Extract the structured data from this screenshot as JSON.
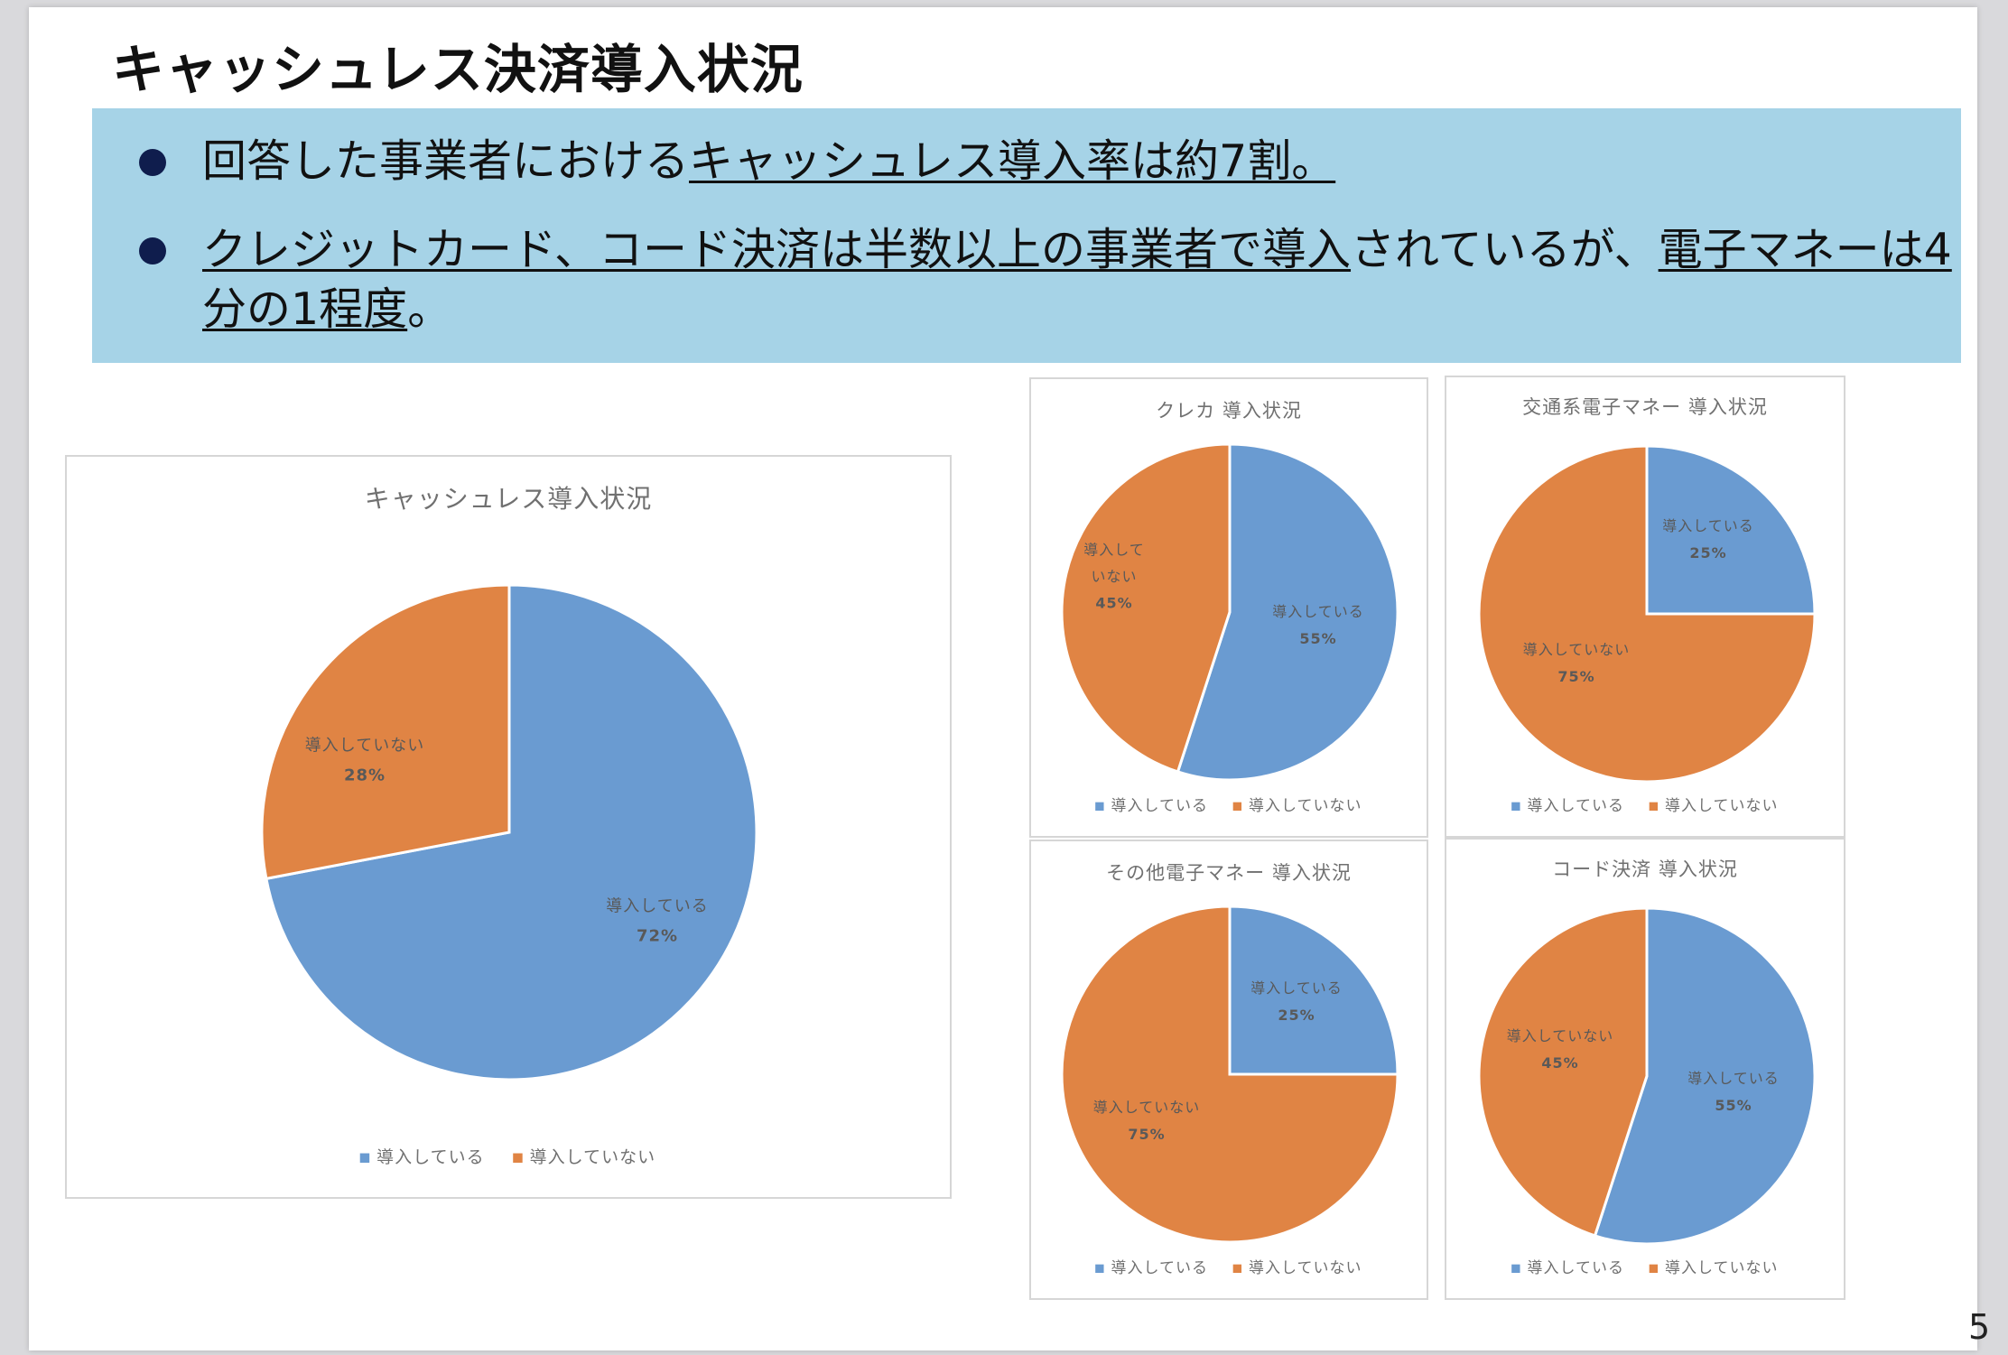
{
  "slide": {
    "title": "キャッシュレス決済導入状況",
    "page_number": "5"
  },
  "summary": {
    "bullet1": {
      "pre": "回答した事業者における",
      "underlined": "キャッシュレス導入率は約7割。"
    },
    "bullet2": {
      "underlined1": "クレジットカード、コード決済は半数以上の事業者で導入",
      "mid": "されているが、",
      "underlined2": "電子マネーは4分の1程度",
      "post": "。"
    }
  },
  "colors": {
    "introduced": "#6a9bd1",
    "not_introduced": "#e08444",
    "summary_bg": "#a6d3e7",
    "bullet_dot": "#0f1d4d",
    "chart_text": "#707070",
    "label_text": "#595959"
  },
  "chart_data": [
    {
      "id": "overall",
      "type": "pie",
      "title": "キャッシュレス導入状況",
      "slices": [
        {
          "name": "導入している",
          "value": 72,
          "label": "72%"
        },
        {
          "name": "導入していない",
          "value": 28,
          "label": "28%"
        }
      ],
      "legend": [
        "導入している",
        "導入していない"
      ],
      "legend_position": "bottom"
    },
    {
      "id": "credit",
      "type": "pie",
      "title": "クレカ 導入状況",
      "slices": [
        {
          "name": "導入している",
          "value": 55,
          "label": "55%"
        },
        {
          "name": "導入していない",
          "value": 45,
          "label": "45%",
          "label_lines": [
            "導入して",
            "いない"
          ]
        }
      ],
      "legend": [
        "導入している",
        "導入していない"
      ],
      "legend_position": "bottom"
    },
    {
      "id": "transit",
      "type": "pie",
      "title": "交通系電子マネー 導入状況",
      "slices": [
        {
          "name": "導入している",
          "value": 25,
          "label": "25%"
        },
        {
          "name": "導入していない",
          "value": 75,
          "label": "75%"
        }
      ],
      "legend": [
        "導入している",
        "導入していない"
      ],
      "legend_position": "bottom"
    },
    {
      "id": "other_emoney",
      "type": "pie",
      "title": "その他電子マネー 導入状況",
      "slices": [
        {
          "name": "導入している",
          "value": 25,
          "label": "25%"
        },
        {
          "name": "導入していない",
          "value": 75,
          "label": "75%"
        }
      ],
      "legend": [
        "導入している",
        "導入していない"
      ],
      "legend_position": "bottom"
    },
    {
      "id": "code",
      "type": "pie",
      "title": "コード決済 導入状況",
      "slices": [
        {
          "name": "導入している",
          "value": 55,
          "label": "55%"
        },
        {
          "name": "導入していない",
          "value": 45,
          "label": "45%"
        }
      ],
      "legend": [
        "導入している",
        "導入していない"
      ],
      "legend_position": "bottom"
    }
  ]
}
